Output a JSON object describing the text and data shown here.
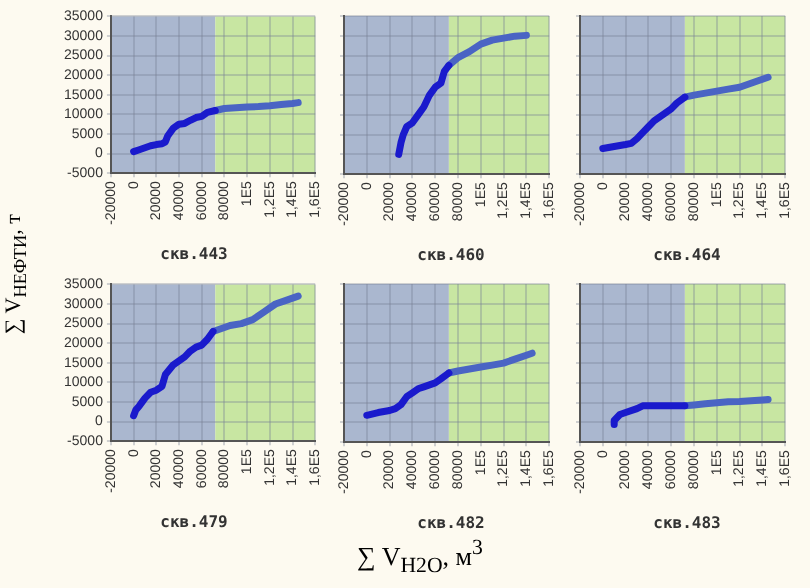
{
  "chart_data": [
    {
      "type": "line",
      "title": "скв.443",
      "ylabel": "∑ V$_{НЕФТИ}$, т",
      "xlim": [
        -20000,
        160000
      ],
      "ylim": [
        -5000,
        35000
      ],
      "xticks": [
        -20000,
        0,
        20000,
        40000,
        60000,
        80000,
        {
          "value": 100000,
          "label": "1E5"
        },
        {
          "value": 120000,
          "label": "1,2E5"
        },
        {
          "value": 140000,
          "label": "1,4E5"
        },
        {
          "value": 160000,
          "label": "1,6E5"
        }
      ],
      "yticks": [
        -5000,
        0,
        5000,
        10000,
        15000,
        20000,
        25000,
        30000,
        35000
      ],
      "grid": true,
      "marker": "none",
      "line_style": "solid",
      "bands": [
        {
          "axis": "x",
          "from": -20000,
          "to": 72000,
          "color": "#aab7cf"
        },
        {
          "axis": "x",
          "from": 72000,
          "to": 160000,
          "color": "#c8e6a2"
        }
      ],
      "series": [
        {
          "color": "#1a1acc",
          "x": [
            0,
            5000,
            10000,
            15000,
            20000,
            25000,
            28000,
            30000,
            35000,
            40000,
            45000,
            50000,
            55000,
            60000,
            65000,
            72000
          ],
          "values": [
            500,
            1000,
            1500,
            2000,
            2300,
            2500,
            3000,
            4500,
            6500,
            7500,
            7700,
            8500,
            9200,
            9500,
            10500,
            11000
          ]
        },
        {
          "color": "#4a64c4",
          "x": [
            72000,
            80000,
            90000,
            100000,
            110000,
            120000,
            130000,
            140000,
            145000
          ],
          "values": [
            11000,
            11500,
            11700,
            11900,
            12000,
            12200,
            12500,
            12800,
            13000
          ]
        }
      ]
    },
    {
      "type": "line",
      "title": "скв.460",
      "xlim": [
        -20000,
        160000
      ],
      "ylim": [
        -5000,
        35000
      ],
      "tick_labels": "x",
      "xticks": [
        -20000,
        0,
        20000,
        40000,
        60000,
        80000,
        {
          "value": 100000,
          "label": "1E5"
        },
        {
          "value": 120000,
          "label": "1,2E5"
        },
        {
          "value": 140000,
          "label": "1,4E5"
        },
        {
          "value": 160000,
          "label": "1,6E5"
        }
      ],
      "yticks": [
        -5000,
        0,
        5000,
        10000,
        15000,
        20000,
        25000,
        30000,
        35000
      ],
      "grid": true,
      "marker": "none",
      "line_style": "solid",
      "bands": [
        {
          "axis": "x",
          "from": -20000,
          "to": 72000,
          "color": "#aab7cf"
        },
        {
          "axis": "x",
          "from": 72000,
          "to": 160000,
          "color": "#c8e6a2"
        }
      ],
      "series": [
        {
          "color": "#1a1acc",
          "x": [
            28000,
            30000,
            32000,
            35000,
            40000,
            45000,
            50000,
            55000,
            60000,
            65000,
            68000,
            72000
          ],
          "values": [
            0,
            3000,
            5000,
            7000,
            8000,
            10000,
            12000,
            15000,
            17000,
            18000,
            21000,
            22500
          ]
        },
        {
          "color": "#4a64c4",
          "x": [
            72000,
            80000,
            90000,
            100000,
            110000,
            120000,
            130000,
            140000
          ],
          "values": [
            22500,
            24500,
            26000,
            27900,
            28900,
            29400,
            29900,
            30100
          ]
        }
      ]
    },
    {
      "type": "line",
      "title": "скв.464",
      "xlim": [
        -20000,
        160000
      ],
      "ylim": [
        -5000,
        35000
      ],
      "tick_labels": "x",
      "xticks": [
        -20000,
        0,
        20000,
        40000,
        60000,
        80000,
        {
          "value": 100000,
          "label": "1E5"
        },
        {
          "value": 120000,
          "label": "1,2E5"
        },
        {
          "value": 140000,
          "label": "1,4E5"
        },
        {
          "value": 160000,
          "label": "1,6E5"
        }
      ],
      "yticks": [
        -5000,
        0,
        5000,
        10000,
        15000,
        20000,
        25000,
        30000,
        35000
      ],
      "grid": true,
      "marker": "none",
      "line_style": "solid",
      "bands": [
        {
          "axis": "x",
          "from": -20000,
          "to": 72000,
          "color": "#aab7cf"
        },
        {
          "axis": "x",
          "from": 72000,
          "to": 160000,
          "color": "#c8e6a2"
        }
      ],
      "series": [
        {
          "color": "#1a1acc",
          "x": [
            0,
            10000,
            20000,
            25000,
            30000,
            35000,
            40000,
            45000,
            50000,
            55000,
            60000,
            65000,
            72000
          ],
          "values": [
            1500,
            2000,
            2500,
            2800,
            4000,
            5500,
            7000,
            8500,
            9500,
            10500,
            11500,
            13000,
            14500
          ]
        },
        {
          "color": "#4a64c4",
          "x": [
            72000,
            80000,
            90000,
            100000,
            110000,
            120000,
            130000,
            140000,
            145000
          ],
          "values": [
            14500,
            15000,
            15500,
            16000,
            16500,
            17000,
            18000,
            19000,
            19500
          ]
        }
      ]
    },
    {
      "type": "line",
      "title": "скв.479",
      "xlim": [
        -20000,
        160000
      ],
      "ylim": [
        -5000,
        35000
      ],
      "xticks": [
        -20000,
        0,
        20000,
        40000,
        60000,
        80000,
        {
          "value": 100000,
          "label": "1E5"
        },
        {
          "value": 120000,
          "label": "1,2E5"
        },
        {
          "value": 140000,
          "label": "1,4E5"
        },
        {
          "value": 160000,
          "label": "1,6E5"
        }
      ],
      "yticks": [
        -5000,
        0,
        5000,
        10000,
        15000,
        20000,
        25000,
        30000,
        35000
      ],
      "grid": true,
      "marker": "none",
      "line_style": "solid",
      "bands": [
        {
          "axis": "x",
          "from": -20000,
          "to": 72000,
          "color": "#aab7cf"
        },
        {
          "axis": "x",
          "from": 72000,
          "to": 160000,
          "color": "#c8e6a2"
        }
      ],
      "series": [
        {
          "color": "#1a1acc",
          "x": [
            0,
            2000,
            5000,
            10000,
            15000,
            20000,
            25000,
            28000,
            35000,
            40000,
            45000,
            50000,
            55000,
            60000,
            65000,
            70000
          ],
          "values": [
            1500,
            3000,
            4000,
            6000,
            7500,
            8000,
            9000,
            12000,
            14500,
            15500,
            16500,
            18000,
            19000,
            19500,
            21000,
            23000
          ]
        },
        {
          "color": "#4a64c4",
          "x": [
            70000,
            75000,
            85000,
            95000,
            105000,
            115000,
            125000,
            135000,
            145000
          ],
          "values": [
            23000,
            23500,
            24500,
            25000,
            26000,
            28000,
            30000,
            31000,
            32000
          ]
        }
      ]
    },
    {
      "type": "line",
      "title": "скв.482",
      "xlabel": "∑ V$_{H2O}$, м$^{3}$",
      "xlim": [
        -20000,
        160000
      ],
      "ylim": [
        -5000,
        35000
      ],
      "tick_labels": "x",
      "xticks": [
        -20000,
        0,
        20000,
        40000,
        60000,
        80000,
        {
          "value": 100000,
          "label": "1E5"
        },
        {
          "value": 120000,
          "label": "1,2E5"
        },
        {
          "value": 140000,
          "label": "1,4E5"
        },
        {
          "value": 160000,
          "label": "1,6E5"
        }
      ],
      "yticks": [
        -5000,
        0,
        5000,
        10000,
        15000,
        20000,
        25000,
        30000,
        35000
      ],
      "grid": true,
      "marker": "none",
      "line_style": "solid",
      "bands": [
        {
          "axis": "x",
          "from": -20000,
          "to": 72000,
          "color": "#aab7cf"
        },
        {
          "axis": "x",
          "from": 72000,
          "to": 160000,
          "color": "#c8e6a2"
        }
      ],
      "series": [
        {
          "color": "#1a1acc",
          "x": [
            0,
            10000,
            20000,
            25000,
            30000,
            35000,
            40000,
            45000,
            50000,
            55000,
            60000,
            65000,
            72000
          ],
          "values": [
            1800,
            2500,
            3000,
            3500,
            4500,
            6500,
            7500,
            8500,
            9000,
            9500,
            10000,
            11000,
            12500
          ]
        },
        {
          "color": "#4a64c4",
          "x": [
            72000,
            80000,
            90000,
            100000,
            110000,
            120000,
            130000,
            140000,
            145000
          ],
          "values": [
            12500,
            13000,
            13500,
            14000,
            14500,
            15000,
            16000,
            17000,
            17500
          ]
        }
      ]
    },
    {
      "type": "line",
      "title": "скв.483",
      "xlim": [
        -20000,
        160000
      ],
      "ylim": [
        -5000,
        35000
      ],
      "tick_labels": "x",
      "xticks": [
        -20000,
        0,
        20000,
        40000,
        60000,
        80000,
        {
          "value": 100000,
          "label": "1E5"
        },
        {
          "value": 120000,
          "label": "1,2E5"
        },
        {
          "value": 140000,
          "label": "1,4E5"
        },
        {
          "value": 160000,
          "label": "1,6E5"
        }
      ],
      "yticks": [
        -5000,
        0,
        5000,
        10000,
        15000,
        20000,
        25000,
        30000,
        35000
      ],
      "grid": true,
      "marker": "none",
      "line_style": "solid",
      "bands": [
        {
          "axis": "x",
          "from": -20000,
          "to": 72000,
          "color": "#aab7cf"
        },
        {
          "axis": "x",
          "from": 72000,
          "to": 160000,
          "color": "#c8e6a2"
        }
      ],
      "series": [
        {
          "color": "#1a1acc",
          "x": [
            10000,
            10000,
            15000,
            20000,
            30000,
            35000,
            50000,
            60000,
            72000
          ],
          "values": [
            -500,
            500,
            2000,
            2500,
            3500,
            4200,
            4200,
            4200,
            4200
          ]
        },
        {
          "color": "#4a64c4",
          "x": [
            72000,
            80000,
            90000,
            100000,
            110000,
            120000,
            130000,
            140000,
            145000
          ],
          "values": [
            4200,
            4400,
            4700,
            5000,
            5200,
            5300,
            5500,
            5700,
            5800
          ]
        }
      ]
    }
  ]
}
